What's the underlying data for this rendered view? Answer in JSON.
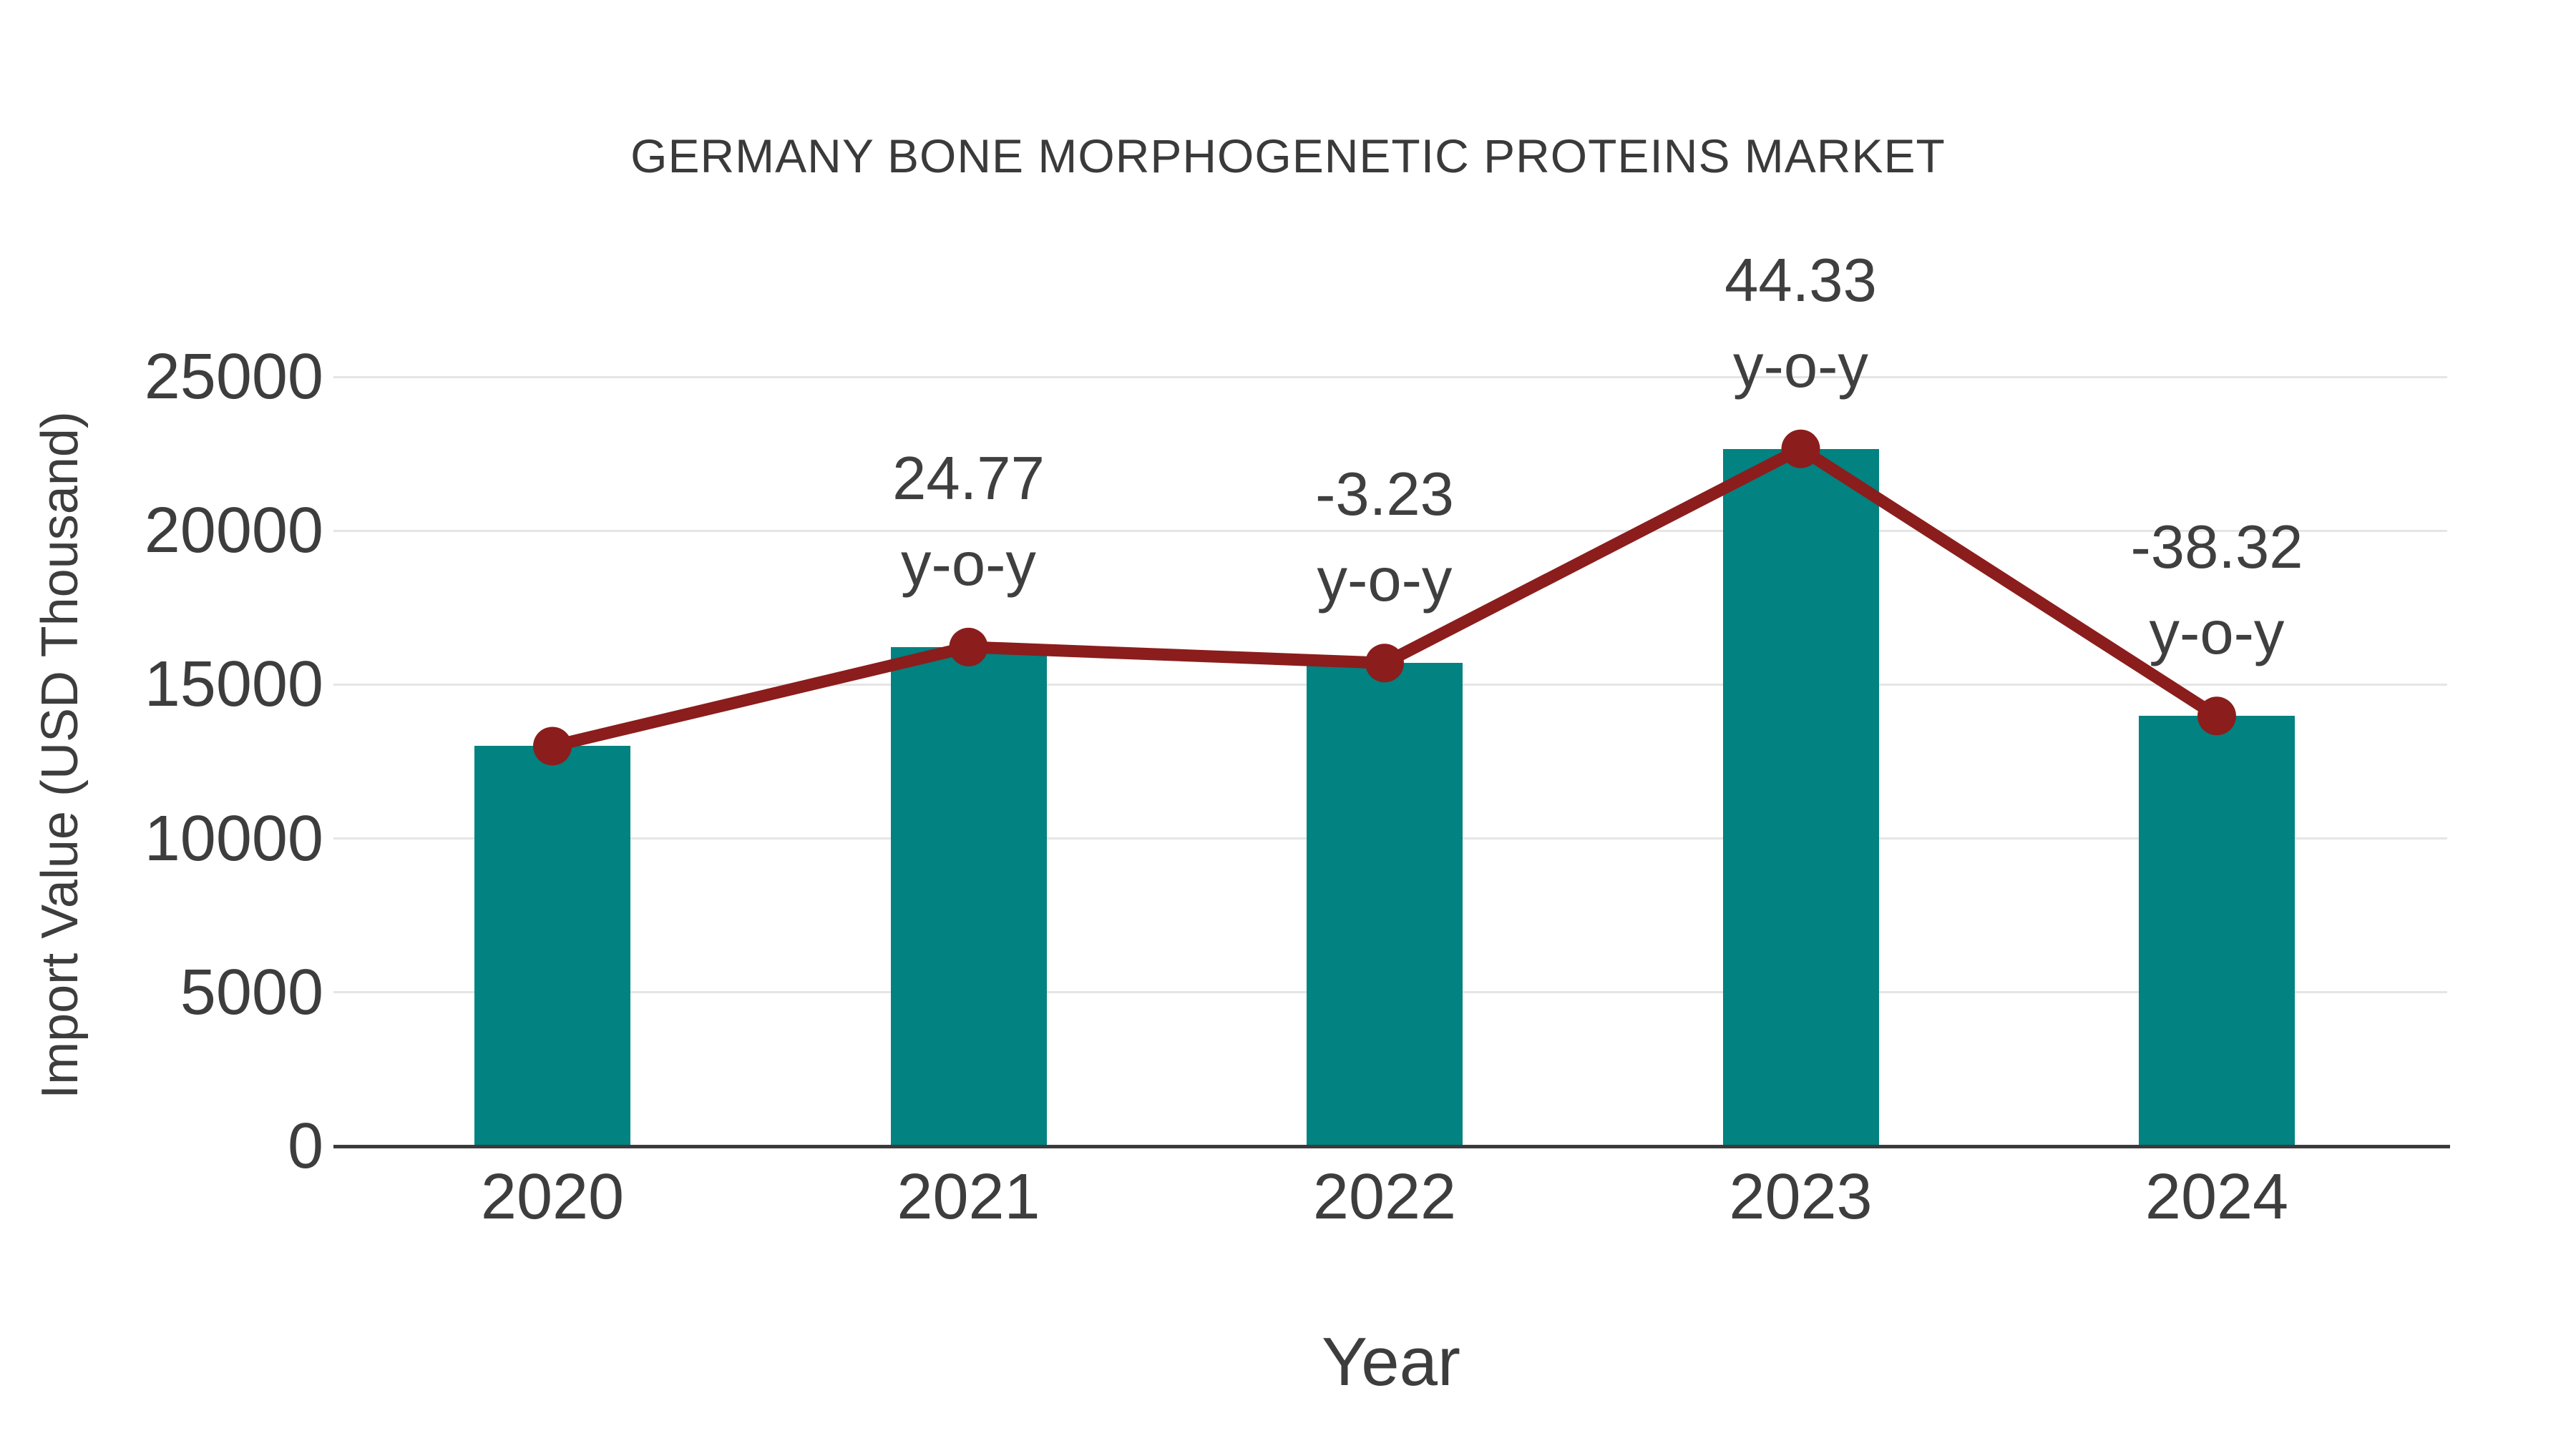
{
  "chart_data": {
    "type": "bar",
    "title": "GERMANY BONE MORPHOGENETIC PROTEINS MARKET",
    "xlabel": "Year",
    "ylabel": "Import Value (USD Thousand)",
    "categories": [
      "2020",
      "2021",
      "2022",
      "2023",
      "2024"
    ],
    "series": [
      {
        "name": "Import Value bars",
        "type": "bar",
        "values": [
          13000,
          16220,
          15700,
          22660,
          13980
        ],
        "color": "#028280"
      },
      {
        "name": "Import Value trend",
        "type": "line",
        "values": [
          13000,
          16220,
          15700,
          22660,
          13980
        ],
        "color": "#8B1D1D"
      }
    ],
    "annotations": [
      {
        "category": "2021",
        "line1": "24.77",
        "line2": "y-o-y"
      },
      {
        "category": "2022",
        "line1": "-3.23",
        "line2": "y-o-y"
      },
      {
        "category": "2023",
        "line1": "44.33",
        "line2": "y-o-y"
      },
      {
        "category": "2024",
        "line1": "-38.32",
        "line2": "y-o-y"
      }
    ],
    "ylim": [
      0,
      25000
    ],
    "yticks": [
      0,
      5000,
      10000,
      15000,
      20000,
      25000
    ],
    "grid": true,
    "legend": false
  },
  "colors": {
    "text": "#3d3d3d",
    "grid": "#e5e5e5",
    "axis": "#3b3b3b",
    "bar": "#028280",
    "line": "#8B1D1D"
  }
}
